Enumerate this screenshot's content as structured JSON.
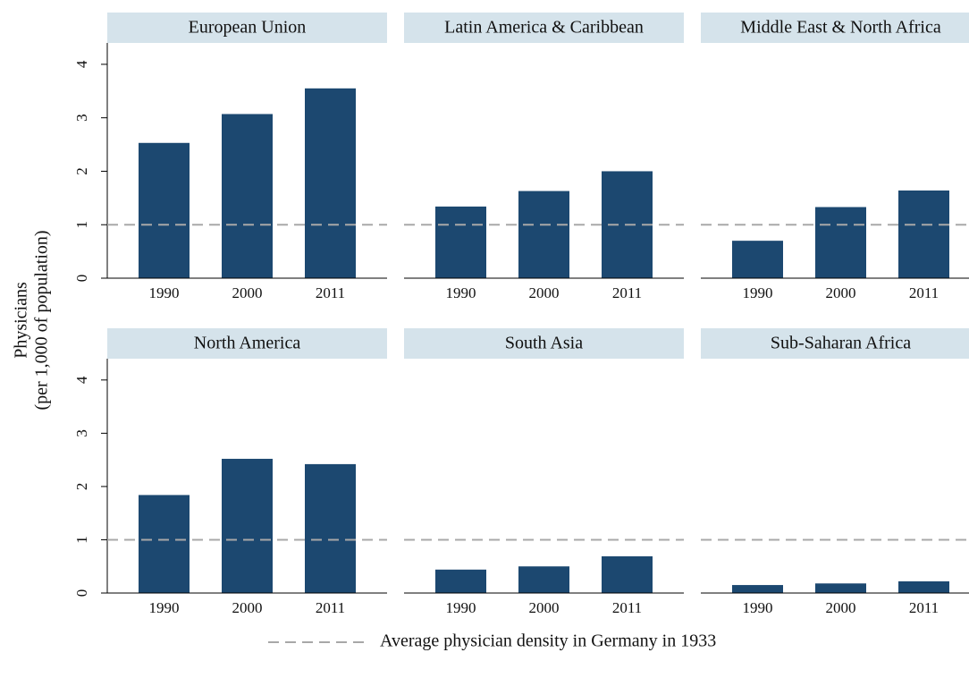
{
  "chart_data": [
    {
      "type": "bar",
      "title": "European Union",
      "categories": [
        "1990",
        "2000",
        "2011"
      ],
      "values": [
        2.53,
        3.07,
        3.55
      ],
      "color": "#1c4870",
      "ylim": [
        0,
        4.4
      ],
      "yticks": [
        0,
        1,
        2,
        3,
        4
      ]
    },
    {
      "type": "bar",
      "title": "Latin America & Caribbean",
      "categories": [
        "1990",
        "2000",
        "2011"
      ],
      "values": [
        1.34,
        1.63,
        2.0
      ],
      "color": "#1c4870",
      "ylim": [
        0,
        4.4
      ]
    },
    {
      "type": "bar",
      "title": "Middle East & North Africa",
      "categories": [
        "1990",
        "2000",
        "2011"
      ],
      "values": [
        0.7,
        1.33,
        1.64
      ],
      "color": "#1c4870",
      "ylim": [
        0,
        4.4
      ]
    },
    {
      "type": "bar",
      "title": "North America",
      "categories": [
        "1990",
        "2000",
        "2011"
      ],
      "values": [
        1.84,
        2.52,
        2.42
      ],
      "color": "#1c4870",
      "ylim": [
        0,
        4.4
      ],
      "yticks": [
        0,
        1,
        2,
        3,
        4
      ]
    },
    {
      "type": "bar",
      "title": "South Asia",
      "categories": [
        "1990",
        "2000",
        "2011"
      ],
      "values": [
        0.44,
        0.5,
        0.69
      ],
      "color": "#1c4870",
      "ylim": [
        0,
        4.4
      ]
    },
    {
      "type": "bar",
      "title": "Sub-Saharan Africa",
      "categories": [
        "1990",
        "2000",
        "2011"
      ],
      "values": [
        0.15,
        0.18,
        0.22
      ],
      "color": "#1c4870",
      "ylim": [
        0,
        4.4
      ]
    }
  ],
  "y_label": [
    "Physicians",
    "(per 1,000 of population)"
  ],
  "reference_line": {
    "value": 1,
    "label": "Average physician density in Germany in 1933",
    "color": "#a8a8a8"
  }
}
